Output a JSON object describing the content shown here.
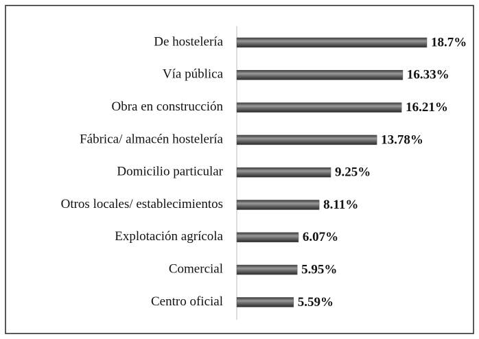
{
  "chart_data": {
    "type": "bar",
    "orientation": "horizontal",
    "categories": [
      "De hostelería",
      "Vía pública",
      "Obra en construcción",
      "Fábrica/ almacén hostelería",
      "Domicilio particular",
      "Otros locales/ establecimientos",
      "Explotación agrícola",
      "Comercial",
      "Centro oficial"
    ],
    "values": [
      18.7,
      16.33,
      16.21,
      13.78,
      9.25,
      8.11,
      6.07,
      5.95,
      5.59
    ],
    "value_labels": [
      "18.7%",
      "16.33%",
      "16.21%",
      "13.78%",
      "9.25%",
      "8.11%",
      "6.07%",
      "5.95%",
      "5.59%"
    ],
    "color": "#555555"
  }
}
